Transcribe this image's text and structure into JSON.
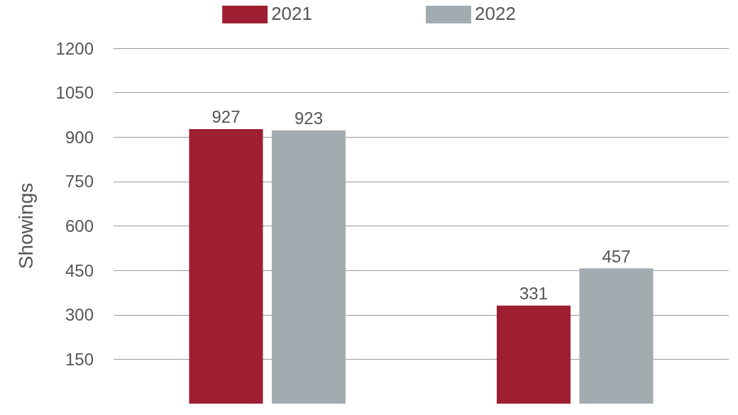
{
  "chart_data": {
    "type": "bar",
    "ylabel": "Showings",
    "categories": [
      null,
      null
    ],
    "series": [
      {
        "name": "2021",
        "color": "#9e1f31",
        "values": [
          927,
          331
        ]
      },
      {
        "name": "2022",
        "color": "#a2abb0",
        "values": [
          923,
          457
        ]
      }
    ],
    "ylim": [
      0,
      1200
    ],
    "yticks": [
      150,
      300,
      450,
      600,
      750,
      900,
      1050,
      1200
    ],
    "grid": "y",
    "legend": "top",
    "data_labels": true
  }
}
